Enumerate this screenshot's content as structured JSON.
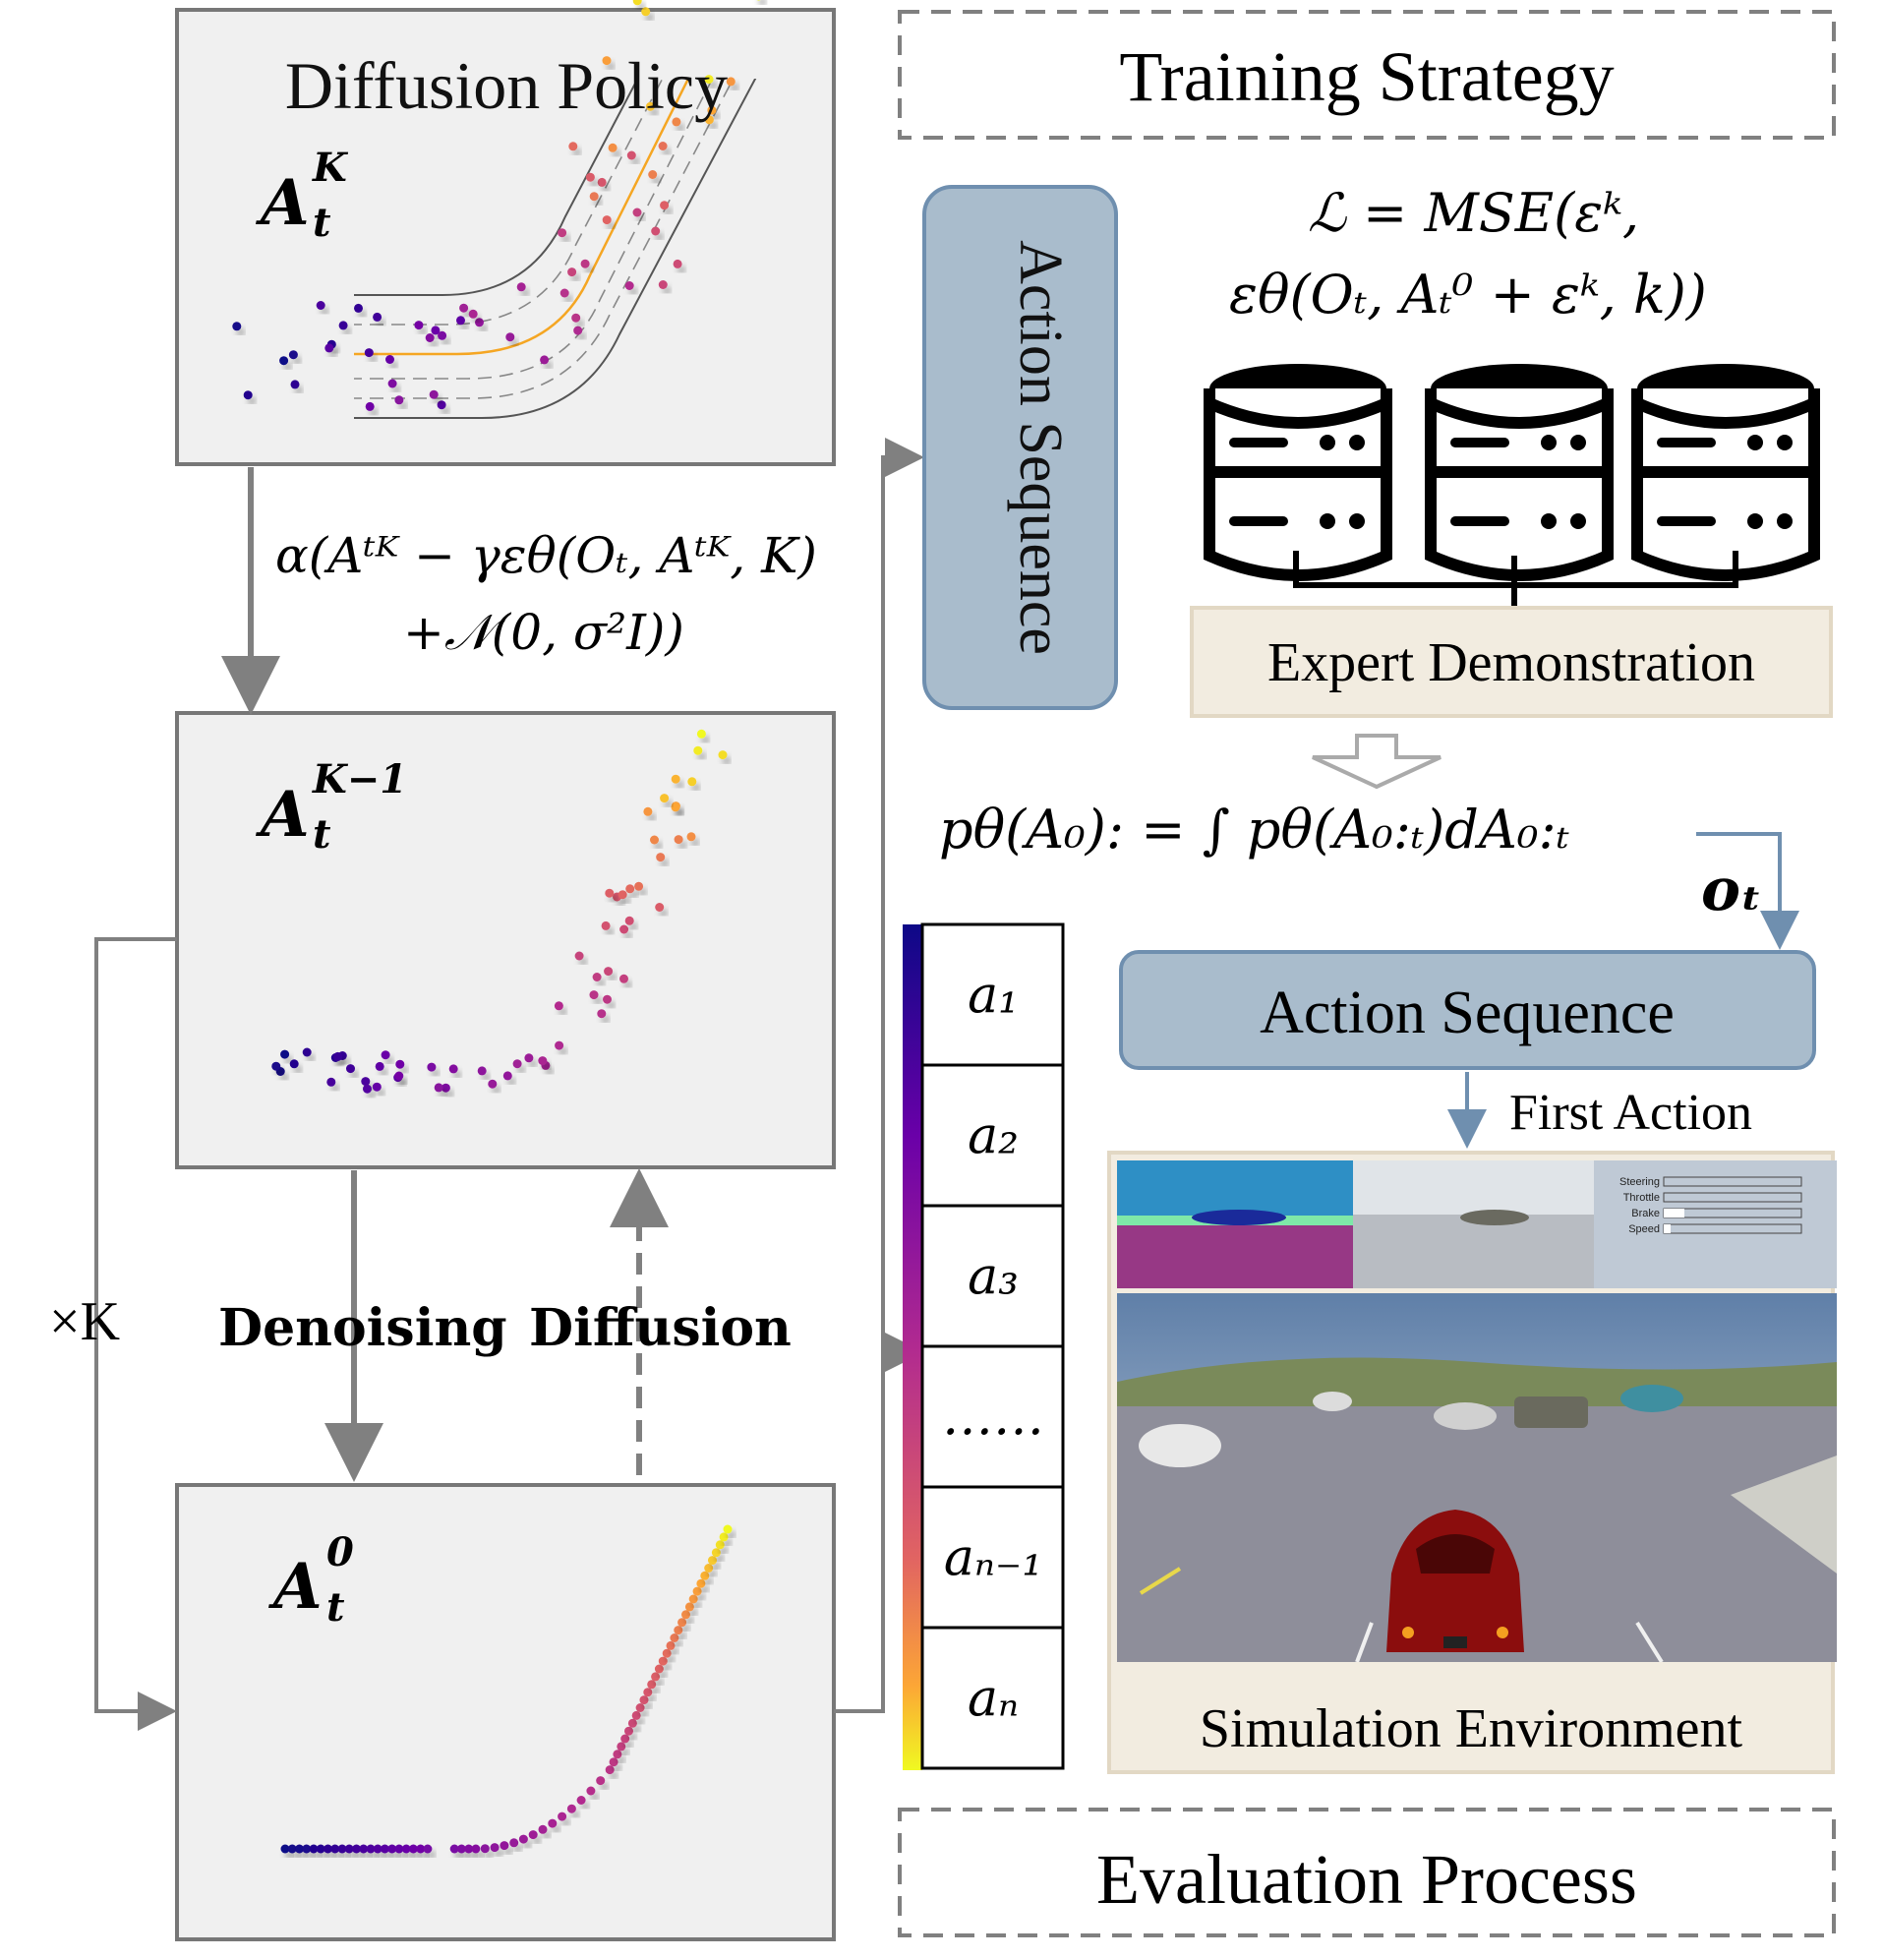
{
  "panels": {
    "top": {
      "title": "Diffusion Policy",
      "label_base": "A",
      "label_sub": "t",
      "label_sup": "K"
    },
    "middle": {
      "label_base": "A",
      "label_sub": "t",
      "label_sup": "K−1"
    },
    "bottom": {
      "label_base": "A",
      "label_sub": "t",
      "label_sup": "0"
    }
  },
  "update_equation": {
    "line1": "α(Aᵗᴷ − γεθ(Oₜ, Aᵗᴷ, K)",
    "line2": "+𝒩(0, σ²I))"
  },
  "labels": {
    "denoising": "Denoising",
    "diffusion": "Diffusion",
    "times_k": "×K",
    "action_sequence_vertical": "Action Sequence",
    "training_strategy": "Training Strategy",
    "evaluation_process": "Evaluation Process",
    "expert_demonstration": "Expert Demonstration",
    "action_sequence_box": "Action Sequence",
    "first_action": "First Action",
    "simulation_environment": "Simulation Environment",
    "observation": "oₜ"
  },
  "loss": {
    "line1": "ℒ = MSE(εᵏ,",
    "line2": "εθ(Oₜ, Aₜ⁰ + εᵏ, k))"
  },
  "marginal": "pθ(A₀): = ∫ pθ(A₀:ₜ)dA₀:ₜ",
  "action_list": [
    "a₁",
    "a₂",
    "a₃",
    "……",
    "aₙ₋₁",
    "aₙ"
  ],
  "hud": {
    "steering": "Steering",
    "throttle": "Throttle",
    "brake": "Brake",
    "speed": "Speed",
    "brake_level": 0.15,
    "speed_level": 0.05
  },
  "colors": {
    "gradient_start": "#0d0887",
    "gradient_mid": "#cc4778",
    "gradient_end": "#f0f921",
    "box_fill": "#a9bccc",
    "demo_fill": "#f2ece0",
    "lane_center": "#f5a623"
  }
}
